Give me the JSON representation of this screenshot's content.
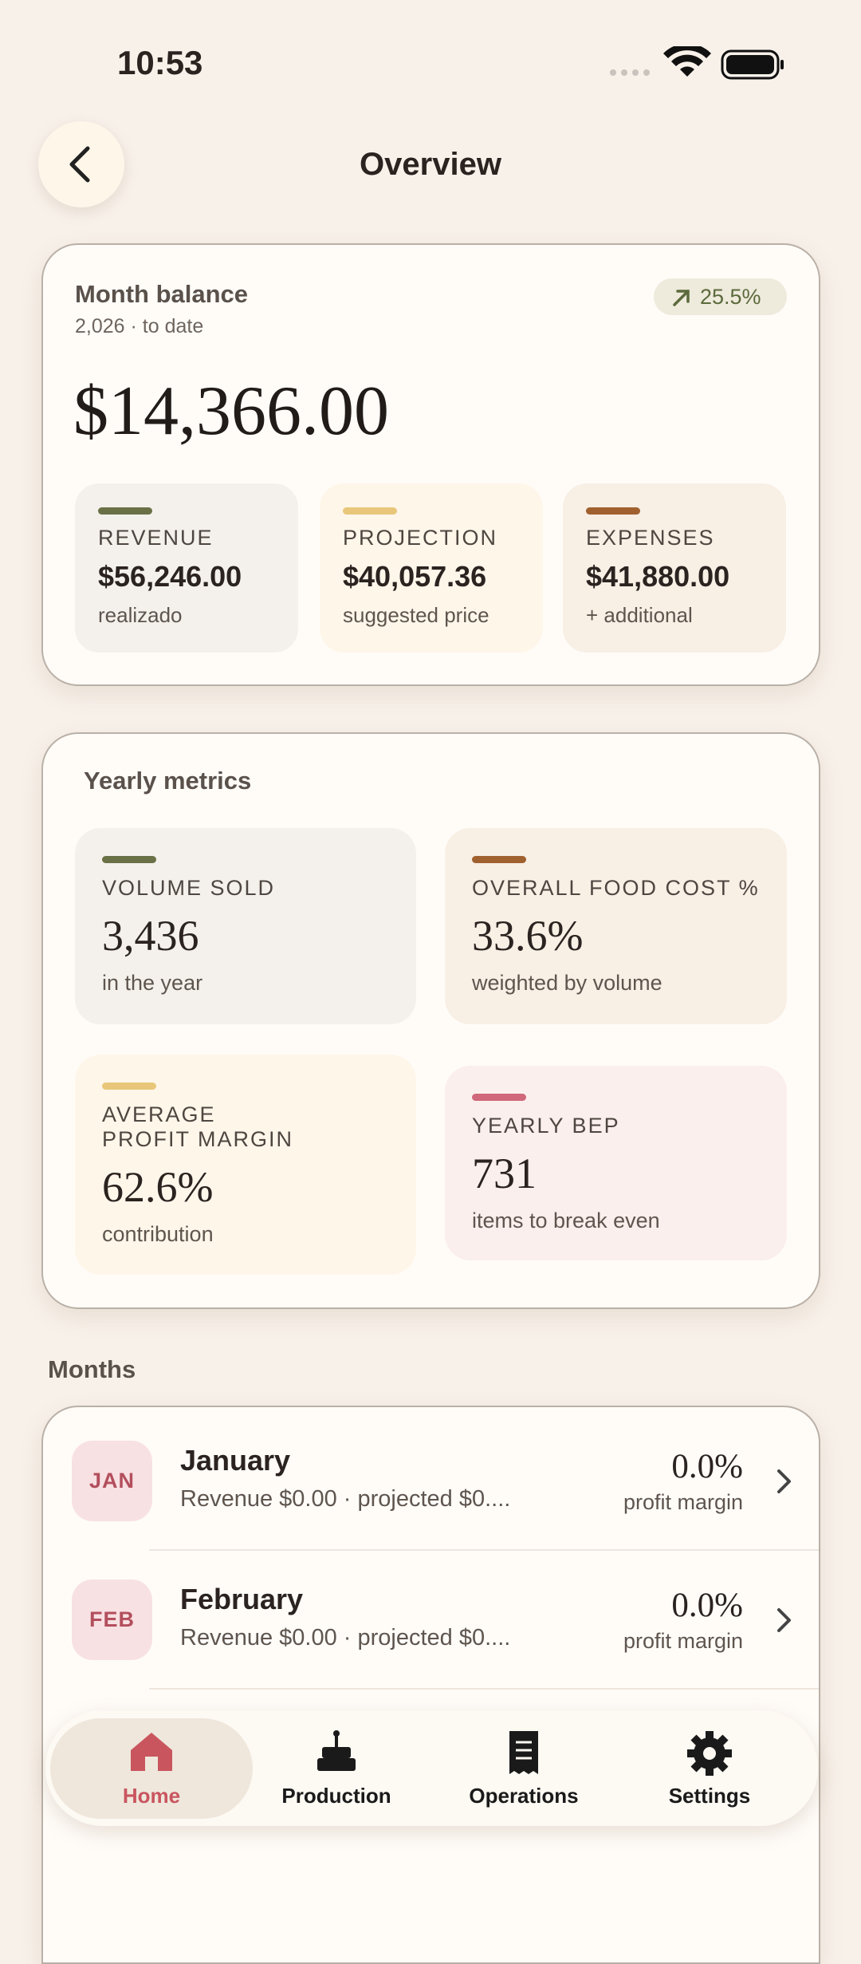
{
  "status": {
    "time": "10:53"
  },
  "header": {
    "title": "Overview"
  },
  "balance": {
    "title": "Month balance",
    "subtitle": "2,026 · to date",
    "badge": "25.5%",
    "amount": "$14,366.00",
    "stats": [
      {
        "label": "REVENUE",
        "value": "$56,246.00",
        "note": "realizado"
      },
      {
        "label": "PROJECTION",
        "value": "$40,057.36",
        "note": "suggested price"
      },
      {
        "label": "EXPENSES",
        "value": "$41,880.00",
        "note": "+ additional"
      }
    ]
  },
  "metrics": {
    "title": "Yearly metrics",
    "items": [
      {
        "label": "VOLUME SOLD",
        "value": "3,436",
        "note": "in the year"
      },
      {
        "label": "OVERALL FOOD COST %",
        "value": "33.6%",
        "note": "weighted by volume"
      },
      {
        "label": "AVERAGE\nPROFIT MARGIN",
        "value": "62.6%",
        "note": "contribution"
      },
      {
        "label": "YEARLY BEP",
        "value": "731",
        "note": "items to break even"
      }
    ]
  },
  "months": {
    "title": "Months",
    "items": [
      {
        "abbr": "JAN",
        "name": "January",
        "detail": "Revenue $0.00 · projected $0....",
        "value": "0.0%",
        "note": "profit margin"
      },
      {
        "abbr": "FEB",
        "name": "February",
        "detail": "Revenue $0.00 · projected $0....",
        "value": "0.0%",
        "note": "profit margin"
      }
    ]
  },
  "nav": {
    "items": [
      "Home",
      "Production",
      "Operations",
      "Settings"
    ]
  }
}
